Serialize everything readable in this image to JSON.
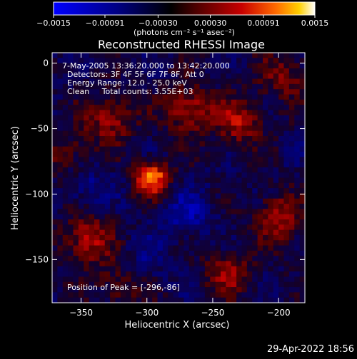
{
  "chart_data": {
    "type": "heatmap",
    "title": "Reconstructed RHESSI Image",
    "xlabel": "Heliocentric X (arcsec)",
    "ylabel": "Heliocentric Y (arcsec)",
    "xlim": [
      -372,
      -180
    ],
    "ylim": [
      -183,
      8
    ],
    "x_ticks": [
      -350,
      -300,
      -250,
      -200
    ],
    "y_ticks": [
      0,
      -50,
      -100,
      -150
    ],
    "colorbar": {
      "range": [
        -0.0015,
        0.0015
      ],
      "ticks": [
        "-0.0015",
        "-0.00091",
        "-0.00030",
        "0.00030",
        "0.00091",
        "0.0015"
      ],
      "label": "(photons cm⁻² s⁻¹ asec⁻²)"
    },
    "peak": {
      "x": -296,
      "y": -86,
      "value": 0.0015
    },
    "hot_spots": [
      {
        "x": -296,
        "y": -88,
        "value": 0.0015
      },
      {
        "x": -268,
        "y": -36,
        "value": 0.0009
      },
      {
        "x": -345,
        "y": -135,
        "value": 0.0009
      },
      {
        "x": -328,
        "y": -42,
        "value": 0.0008
      },
      {
        "x": -230,
        "y": -45,
        "value": 0.0008
      },
      {
        "x": -200,
        "y": -118,
        "value": 0.0008
      },
      {
        "x": -238,
        "y": -160,
        "value": 0.0007
      },
      {
        "x": -195,
        "y": -10,
        "value": 0.0006
      },
      {
        "x": -360,
        "y": -70,
        "value": 0.0005
      },
      {
        "x": -320,
        "y": -170,
        "value": 0.0005
      }
    ],
    "cold_spots": [
      {
        "x": -270,
        "y": -115,
        "value": -0.0005
      },
      {
        "x": -345,
        "y": -95,
        "value": -0.0004
      },
      {
        "x": -300,
        "y": -150,
        "value": -0.0003
      }
    ],
    "annotations": [
      "7-May-2005 13:36:20.000 to 13:42:20.000",
      "Detectors: 3F 4F 5F 6F 7F 8F, Att 0",
      "Energy Range: 12.0 - 25.0 keV",
      "Clean     Total counts: 3.55E+03"
    ],
    "peak_label": "Position of Peak = [-296,-86]"
  },
  "timestamp": "29-Apr-2022 18:56"
}
